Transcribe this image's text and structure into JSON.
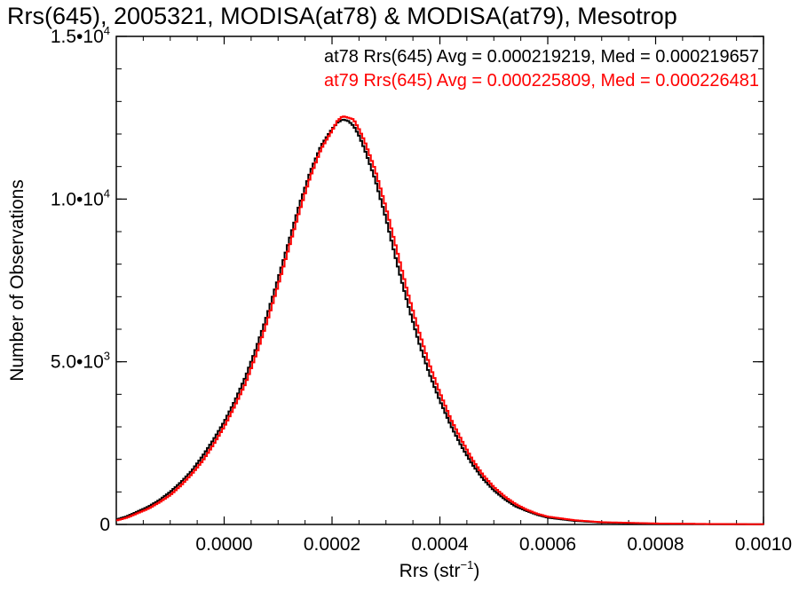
{
  "chart_data": {
    "type": "line",
    "title": "Rrs(645), 2005321, MODISA(at78) & MODISA(at79), Mesotrop",
    "xlabel_main": "Rrs (str",
    "xlabel_sup": "−1",
    "xlabel_end": ")",
    "ylabel": "Number of Observations",
    "xlim": [
      -0.0002,
      0.001
    ],
    "ylim": [
      0,
      15000
    ],
    "x_ticks": [
      {
        "value": 0.0,
        "label": "0.0000"
      },
      {
        "value": 0.0002,
        "label": "0.0002"
      },
      {
        "value": 0.0004,
        "label": "0.0004"
      },
      {
        "value": 0.0006,
        "label": "0.0006"
      },
      {
        "value": 0.0008,
        "label": "0.0008"
      },
      {
        "value": 0.001,
        "label": "0.0010"
      }
    ],
    "y_ticks": [
      {
        "value": 0,
        "mant": "0",
        "exp": ""
      },
      {
        "value": 5000,
        "mant": "5.0•10",
        "exp": "3"
      },
      {
        "value": 10000,
        "mant": "1.0•10",
        "exp": "4"
      },
      {
        "value": 15000,
        "mant": "1.5•10",
        "exp": "4"
      }
    ],
    "grid": false,
    "legend_position": "top-right",
    "series": [
      {
        "name": "at78 Rrs(645) Avg = 0.000219219, Med = 0.000219657",
        "color": "#000000",
        "x": [
          -0.0002,
          -0.00018,
          -0.00016,
          -0.00014,
          -0.00012,
          -0.0001,
          -8e-05,
          -6e-05,
          -4e-05,
          -2e-05,
          0.0,
          2e-05,
          4e-05,
          6e-05,
          8e-05,
          0.0001,
          0.00012,
          0.00014,
          0.00016,
          0.00018,
          0.0002,
          0.00021,
          0.00022,
          0.00023,
          0.00024,
          0.00025,
          0.00026,
          0.00028,
          0.0003,
          0.00032,
          0.00034,
          0.00036,
          0.00038,
          0.0004,
          0.00042,
          0.00044,
          0.00046,
          0.00048,
          0.0005,
          0.00052,
          0.00054,
          0.00056,
          0.00058,
          0.0006,
          0.00065,
          0.0007,
          0.0008,
          0.0009,
          0.001
        ],
        "y": [
          150,
          250,
          400,
          550,
          750,
          1000,
          1300,
          1650,
          2100,
          2600,
          3150,
          3800,
          4550,
          5450,
          6450,
          7550,
          8700,
          9850,
          10850,
          11650,
          12150,
          12350,
          12450,
          12400,
          12250,
          11950,
          11550,
          10600,
          9400,
          8050,
          6800,
          5650,
          4650,
          3800,
          3050,
          2400,
          1850,
          1400,
          1050,
          780,
          560,
          420,
          300,
          210,
          110,
          60,
          25,
          12,
          5
        ]
      },
      {
        "name": "at79 Rrs(645) Avg = 0.000225809, Med = 0.000226481",
        "color": "#ff0000",
        "x": [
          -0.0002,
          -0.00018,
          -0.00016,
          -0.00014,
          -0.00012,
          -0.0001,
          -8e-05,
          -6e-05,
          -4e-05,
          -2e-05,
          0.0,
          2e-05,
          4e-05,
          6e-05,
          8e-05,
          0.0001,
          0.00012,
          0.00014,
          0.00016,
          0.00018,
          0.0002,
          0.00021,
          0.00022,
          0.00023,
          0.00024,
          0.00025,
          0.00026,
          0.00028,
          0.0003,
          0.00032,
          0.00034,
          0.00036,
          0.00038,
          0.0004,
          0.00042,
          0.00044,
          0.00046,
          0.00048,
          0.0005,
          0.00052,
          0.00054,
          0.00056,
          0.00058,
          0.0006,
          0.00065,
          0.0007,
          0.0008,
          0.0009,
          0.001
        ],
        "y": [
          120,
          210,
          350,
          490,
          680,
          900,
          1200,
          1550,
          1950,
          2450,
          3000,
          3650,
          4350,
          5250,
          6250,
          7350,
          8500,
          9650,
          10700,
          11550,
          12100,
          12400,
          12550,
          12500,
          12450,
          12150,
          11800,
          10900,
          9750,
          8450,
          7150,
          6000,
          4950,
          4050,
          3250,
          2600,
          2000,
          1520,
          1150,
          860,
          630,
          460,
          330,
          240,
          130,
          70,
          30,
          14,
          6
        ]
      }
    ]
  }
}
